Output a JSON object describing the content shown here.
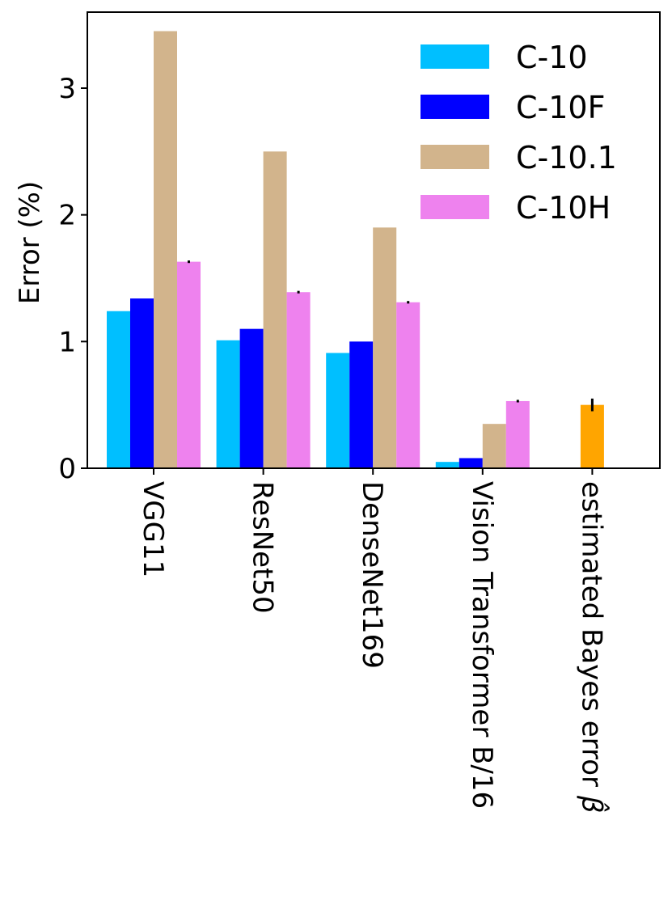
{
  "chart_data": {
    "type": "bar",
    "ylabel": "Error (%)",
    "ylim": [
      0,
      3.6
    ],
    "yticks": [
      0,
      1,
      2,
      3
    ],
    "categories": [
      "VGG11",
      "ResNet50",
      "DenseNet169",
      "Vision Transformer B/16",
      "estimated Bayes error"
    ],
    "bayes_label_symbol": "β̂",
    "series": [
      {
        "name": "C-10",
        "color": "#00bfff",
        "values": [
          1.24,
          1.01,
          0.91,
          0.05,
          null
        ],
        "errors": [
          0,
          0,
          0,
          0,
          null
        ]
      },
      {
        "name": "C-10F",
        "color": "#0000ff",
        "values": [
          1.34,
          1.1,
          1.0,
          0.08,
          null
        ],
        "errors": [
          0,
          0,
          0,
          0,
          null
        ]
      },
      {
        "name": "C-10.1",
        "color": "#d2b48c",
        "values": [
          3.45,
          2.5,
          1.9,
          0.35,
          null
        ],
        "errors": [
          0,
          0,
          0,
          0,
          null
        ]
      },
      {
        "name": "C-10H",
        "color": "#ee82ee",
        "values": [
          1.63,
          1.39,
          1.31,
          0.53,
          null
        ],
        "errors": [
          0.01,
          0.01,
          0.01,
          0.01,
          null
        ]
      }
    ],
    "bayes": {
      "value": 0.5,
      "error": 0.05,
      "color": "#ffa500"
    },
    "legend_position": "top-right",
    "grid": false
  }
}
